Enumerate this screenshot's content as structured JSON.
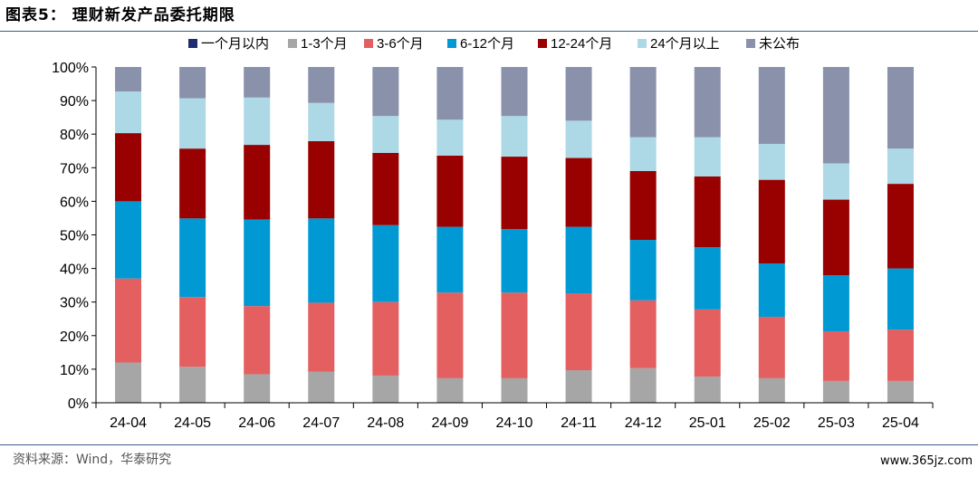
{
  "figure": {
    "title": "图表5： 理财新发产品委托期限",
    "source": "资料来源：Wind，华泰研究",
    "watermark": "www.365jz.com"
  },
  "chart_data": {
    "type": "bar",
    "stacked": true,
    "categories": [
      "24-04",
      "24-05",
      "24-06",
      "24-07",
      "24-08",
      "24-09",
      "24-10",
      "24-11",
      "24-12",
      "25-01",
      "25-02",
      "25-03",
      "25-04"
    ],
    "ylim": [
      0,
      100
    ],
    "yticks": [
      "0%",
      "10%",
      "20%",
      "30%",
      "40%",
      "50%",
      "60%",
      "70%",
      "80%",
      "90%",
      "100%"
    ],
    "legend_position": "top",
    "grid": false,
    "series": [
      {
        "name": "一个月以内",
        "color": "#1f2c6e",
        "values": [
          0,
          0,
          0,
          0,
          0,
          0,
          0,
          0,
          0,
          0,
          0,
          0,
          0
        ]
      },
      {
        "name": "1-3个月",
        "color": "#a6a6a6",
        "values": [
          12,
          10.7,
          8.5,
          9.3,
          8.1,
          7.3,
          7.3,
          9.7,
          10.3,
          7.8,
          7.3,
          6.5,
          6.5
        ]
      },
      {
        "name": "3-6个月",
        "color": "#e46060",
        "values": [
          25,
          20.8,
          20.3,
          20.5,
          21.9,
          25.5,
          25.5,
          22.9,
          20.2,
          20.0,
          18.3,
          14.8,
          15.3
        ]
      },
      {
        "name": "6-12个月",
        "color": "#0099d4",
        "values": [
          23,
          23.4,
          25.8,
          25.1,
          22.9,
          19.6,
          18.9,
          19.8,
          18.0,
          18.5,
          15.9,
          16.7,
          18.2
        ]
      },
      {
        "name": "12-24个月",
        "color": "#990000",
        "values": [
          20.3,
          20.8,
          22.2,
          23.0,
          21.5,
          21.2,
          21.6,
          20.5,
          20.5,
          21.1,
          24.9,
          22.5,
          25.2
        ]
      },
      {
        "name": "24个月以上",
        "color": "#add8e6",
        "values": [
          12.4,
          15.0,
          14.1,
          11.4,
          11.0,
          10.7,
          12.1,
          11.1,
          10.1,
          11.7,
          10.7,
          10.8,
          10.5
        ]
      },
      {
        "name": "未公布",
        "color": "#8a91aa",
        "values": [
          7.3,
          9.3,
          9.1,
          10.7,
          14.6,
          15.7,
          14.6,
          16.0,
          20.9,
          20.9,
          22.9,
          28.7,
          24.3
        ]
      }
    ]
  }
}
